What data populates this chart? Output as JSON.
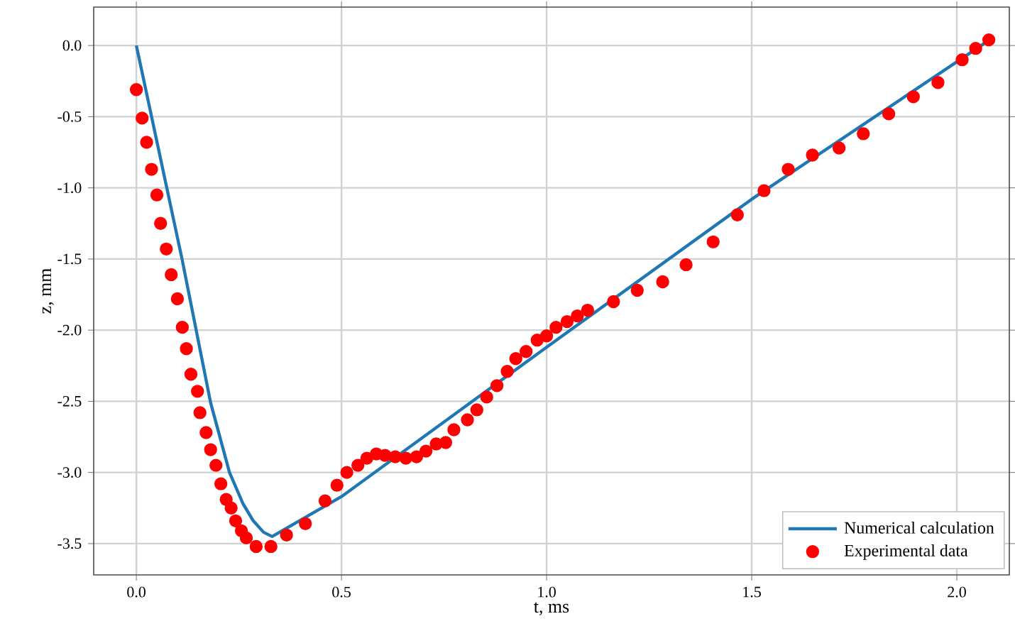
{
  "chart_data": {
    "type": "line",
    "xlabel": "t, ms",
    "ylabel": "z, mm",
    "xlim": [
      -0.104,
      2.128
    ],
    "ylim": [
      -3.72,
      0.27
    ],
    "xticks": [
      {
        "value": 0,
        "label": "0.0"
      },
      {
        "value": 0.5,
        "label": "0.5"
      },
      {
        "value": 1,
        "label": "1.0"
      },
      {
        "value": 1.5,
        "label": "1.5"
      },
      {
        "value": 2,
        "label": "2.0"
      }
    ],
    "yticks": [
      {
        "value": -3.5,
        "label": "-3.5"
      },
      {
        "value": -3,
        "label": "-3.0"
      },
      {
        "value": -2.5,
        "label": "-2.5"
      },
      {
        "value": -2,
        "label": "-2.0"
      },
      {
        "value": -1.5,
        "label": "-1.5"
      },
      {
        "value": -1,
        "label": "-1.0"
      },
      {
        "value": -0.5,
        "label": "-0.5"
      },
      {
        "value": 0,
        "label": "0.0"
      }
    ],
    "grid": true,
    "legend": "bottom right",
    "series": [
      {
        "name": "Numerical calculation",
        "color": "#1f77b4",
        "marker": "none",
        "line_style": "solid",
        "x": [
          0,
          0.112,
          0.181,
          0.227,
          0.26,
          0.285,
          0.31,
          0.331,
          0.5,
          1.0,
          1.5,
          2.08
        ],
        "values": [
          0,
          -1.51,
          -2.51,
          -3.0,
          -3.22,
          -3.34,
          -3.42,
          -3.45,
          -3.17,
          -2.12,
          -1.08,
          0.04
        ]
      },
      {
        "name": "Experimental data",
        "type": "scatter",
        "color": "#ff0000",
        "marker": "circle",
        "x": [
          0.0,
          0.014,
          0.025,
          0.037,
          0.05,
          0.059,
          0.073,
          0.085,
          0.1,
          0.112,
          0.122,
          0.133,
          0.149,
          0.155,
          0.17,
          0.181,
          0.194,
          0.206,
          0.219,
          0.231,
          0.242,
          0.256,
          0.268,
          0.292,
          0.328,
          0.366,
          0.412,
          0.46,
          0.489,
          0.513,
          0.54,
          0.562,
          0.585,
          0.606,
          0.631,
          0.657,
          0.683,
          0.706,
          0.731,
          0.754,
          0.774,
          0.807,
          0.83,
          0.854,
          0.879,
          0.904,
          0.925,
          0.95,
          0.977,
          1.0,
          1.023,
          1.05,
          1.075,
          1.1,
          1.163,
          1.221,
          1.283,
          1.34,
          1.406,
          1.465,
          1.53,
          1.589,
          1.648,
          1.713,
          1.772,
          1.834,
          1.894,
          1.954,
          2.013,
          2.046,
          2.078
        ],
        "values": [
          -0.31,
          -0.51,
          -0.68,
          -0.87,
          -1.05,
          -1.25,
          -1.43,
          -1.61,
          -1.78,
          -1.98,
          -2.13,
          -2.31,
          -2.43,
          -2.58,
          -2.72,
          -2.84,
          -2.95,
          -3.08,
          -3.19,
          -3.25,
          -3.34,
          -3.41,
          -3.46,
          -3.52,
          -3.52,
          -3.44,
          -3.36,
          -3.2,
          -3.09,
          -3.0,
          -2.95,
          -2.9,
          -2.87,
          -2.88,
          -2.89,
          -2.9,
          -2.89,
          -2.85,
          -2.8,
          -2.79,
          -2.7,
          -2.63,
          -2.56,
          -2.47,
          -2.39,
          -2.29,
          -2.2,
          -2.15,
          -2.07,
          -2.04,
          -1.98,
          -1.94,
          -1.9,
          -1.86,
          -1.8,
          -1.72,
          -1.66,
          -1.54,
          -1.38,
          -1.19,
          -1.02,
          -0.87,
          -0.77,
          -0.72,
          -0.62,
          -0.48,
          -0.36,
          -0.26,
          -0.1,
          -0.02,
          0.04
        ]
      }
    ]
  }
}
